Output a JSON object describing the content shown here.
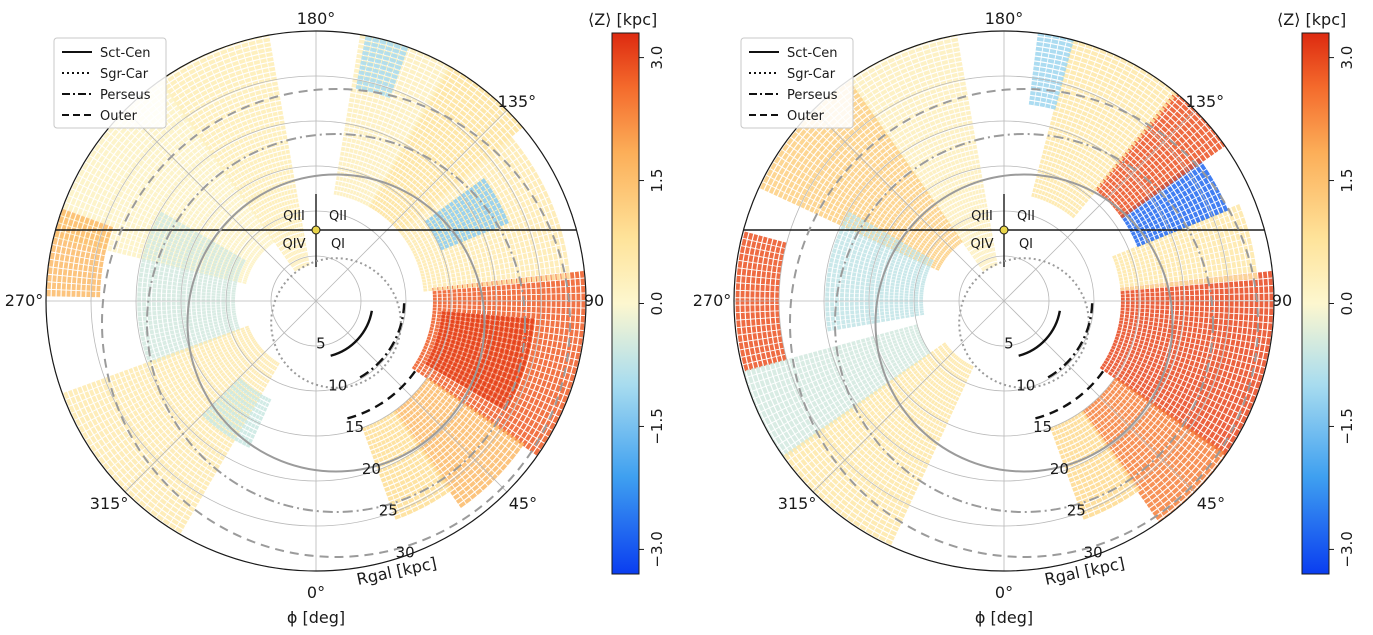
{
  "chart_data": [
    {
      "type": "polar-heatmap",
      "panel": "left",
      "theta_axis": {
        "label": "ϕ [deg]",
        "tick_labels": [
          "0°",
          "45°",
          "90",
          "135°",
          "180°",
          "270°",
          "315°"
        ],
        "tick_values": [
          0,
          45,
          90,
          135,
          180,
          270,
          315
        ],
        "zero_direction": "bottom",
        "direction": "counter-clockwise"
      },
      "r_axis": {
        "label": "Rgal [kpc]",
        "ticks": [
          5,
          10,
          15,
          20,
          25,
          30
        ],
        "range": [
          0,
          30
        ]
      },
      "quadrant_labels": [
        "QIII",
        "QII",
        "QIV",
        "QI"
      ],
      "legend": {
        "placement": "top-left",
        "entries": [
          {
            "name": "Sct-Cen",
            "style": "solid"
          },
          {
            "name": "Sgr-Car",
            "style": "dotted"
          },
          {
            "name": "Perseus",
            "style": "dashdot"
          },
          {
            "name": "Outer",
            "style": "dashed"
          }
        ]
      },
      "colorbar": {
        "label": "⟨Z⟩ [kpc]",
        "range": [
          -3.3,
          3.3
        ],
        "tick_labels": [
          "3.0",
          "1.5",
          "0.0",
          "−1.5",
          "−3.0"
        ],
        "tick_values": [
          3.0,
          1.5,
          0.0,
          -1.5,
          -3.0
        ],
        "colormap": "blue-white-red"
      },
      "cells": [
        {
          "phi": [
            55,
            95
          ],
          "r": [
            13,
            30
          ],
          "z": 2.8
        },
        {
          "phi": [
            60,
            85
          ],
          "r": [
            14,
            24
          ],
          "z": 3.1
        },
        {
          "phi": [
            35,
            55
          ],
          "r": [
            15,
            28
          ],
          "z": 1.6
        },
        {
          "phi": [
            20,
            35
          ],
          "r": [
            15,
            26
          ],
          "z": 0.9
        },
        {
          "phi": [
            95,
            130
          ],
          "r": [
            12,
            28
          ],
          "z": 0.5
        },
        {
          "phi": [
            112,
            125
          ],
          "r": [
            15,
            23
          ],
          "z": -1.3
        },
        {
          "phi": [
            130,
            150
          ],
          "r": [
            12,
            31
          ],
          "z": 0.8
        },
        {
          "phi": [
            150,
            170
          ],
          "r": [
            12,
            30
          ],
          "z": 0.3
        },
        {
          "phi": [
            160,
            168
          ],
          "r": [
            24,
            30
          ],
          "z": -1.0
        },
        {
          "phi": [
            190,
            215
          ],
          "r": [
            4,
            30
          ],
          "z": 0.4
        },
        {
          "phi": [
            215,
            255
          ],
          "r": [
            8,
            31
          ],
          "z": 0.2
        },
        {
          "phi": [
            240,
            290
          ],
          "r": [
            9,
            20
          ],
          "z": -0.5
        },
        {
          "phi": [
            250,
            268
          ],
          "r": [
            24,
            31
          ],
          "z": 1.6
        },
        {
          "phi": [
            290,
            330
          ],
          "r": [
            8,
            31
          ],
          "z": 0.5
        },
        {
          "phi": [
            315,
            335
          ],
          "r": [
            12,
            18
          ],
          "z": -0.6
        }
      ]
    },
    {
      "type": "polar-heatmap",
      "panel": "right",
      "theta_axis": {
        "label": "ϕ [deg]",
        "tick_labels": [
          "0°",
          "45°",
          "90",
          "135°",
          "180°",
          "270°",
          "315°"
        ],
        "tick_values": [
          0,
          45,
          90,
          135,
          180,
          270,
          315
        ],
        "zero_direction": "bottom",
        "direction": "counter-clockwise"
      },
      "r_axis": {
        "label": "Rgal [kpc]",
        "ticks": [
          5,
          10,
          15,
          20,
          25,
          30
        ],
        "range": [
          0,
          30
        ]
      },
      "quadrant_labels": [
        "QIII",
        "QII",
        "QIV",
        "QI"
      ],
      "legend": {
        "placement": "top-left",
        "entries": [
          {
            "name": "Sct-Cen",
            "style": "solid"
          },
          {
            "name": "Sgr-Car",
            "style": "dotted"
          },
          {
            "name": "Perseus",
            "style": "dashdot"
          },
          {
            "name": "Outer",
            "style": "dashed"
          }
        ]
      },
      "colorbar": {
        "label": "⟨Z⟩ [kpc]",
        "range": [
          -3.3,
          3.3
        ],
        "tick_labels": [
          "3.0",
          "1.5",
          "0.0",
          "−1.5",
          "−3.0"
        ],
        "tick_values": [
          3.0,
          1.5,
          0.0,
          -1.5,
          -3.0
        ],
        "colormap": "blue-white-red"
      },
      "cells": [
        {
          "phi": [
            55,
            95
          ],
          "r": [
            13,
            31
          ],
          "z": 3.0
        },
        {
          "phi": [
            35,
            55
          ],
          "r": [
            15,
            30
          ],
          "z": 2.4
        },
        {
          "phi": [
            20,
            35
          ],
          "r": [
            15,
            26
          ],
          "z": 1.0
        },
        {
          "phi": [
            95,
            112
          ],
          "r": [
            13,
            28
          ],
          "z": 0.6
        },
        {
          "phi": [
            112,
            125
          ],
          "r": [
            16,
            27
          ],
          "z": -2.8
        },
        {
          "phi": [
            125,
            140
          ],
          "r": [
            16,
            31
          ],
          "z": 2.9
        },
        {
          "phi": [
            140,
            165
          ],
          "r": [
            12,
            30
          ],
          "z": 0.6
        },
        {
          "phi": [
            165,
            172
          ],
          "r": [
            22,
            30
          ],
          "z": -1.1
        },
        {
          "phi": [
            190,
            215
          ],
          "r": [
            4,
            30
          ],
          "z": 0.3
        },
        {
          "phi": [
            215,
            245
          ],
          "r": [
            8,
            31
          ],
          "z": 1.2
        },
        {
          "phi": [
            240,
            280
          ],
          "r": [
            9,
            20
          ],
          "z": -0.7
        },
        {
          "phi": [
            255,
            285
          ],
          "r": [
            25,
            31
          ],
          "z": 2.9
        },
        {
          "phi": [
            285,
            305
          ],
          "r": [
            10,
            31
          ],
          "z": -0.5
        },
        {
          "phi": [
            305,
            335
          ],
          "r": [
            8,
            31
          ],
          "z": 0.6
        }
      ]
    }
  ]
}
